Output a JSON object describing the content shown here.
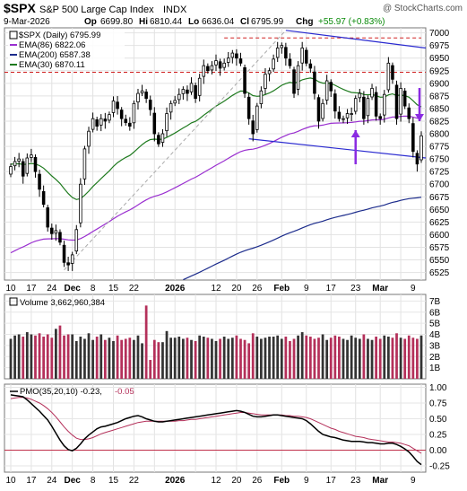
{
  "header": {
    "symbol": "$SPX",
    "name": "S&P 500 Large Cap Index",
    "exchange": "INDX",
    "watermark": "@ StockCharts.com",
    "date": "9-Mar-2026",
    "open_label": "Op",
    "open": "6699.80",
    "high_label": "Hi",
    "high": "6810.44",
    "low_label": "Lo",
    "low": "6636.04",
    "close_label": "Cl",
    "close": "6795.99",
    "change_label": "Chg",
    "change": "+55.97 (+0.83%)"
  },
  "legend": {
    "price": "$SPX (Daily) 6795.99",
    "ema86": "EMA(86) 6822.06",
    "ema200": "EMA(200) 6587.38",
    "ema30": "EMA(30) 6870.11"
  },
  "volume_legend": "Volume 3,662,960,384",
  "pmo_legend_main": "PMO(35,20,10) -0.23,",
  "pmo_legend_signal": "-0.05",
  "x_ticks": [
    "10",
    "17",
    "24",
    "Dec",
    "8",
    "15",
    "22",
    "2026",
    "12",
    "20",
    "26",
    "Feb",
    "9",
    "17",
    "23",
    "Mar",
    "9"
  ],
  "price_ticks": [
    "7000",
    "6975",
    "6950",
    "6925",
    "6900",
    "6875",
    "6850",
    "6825",
    "6800",
    "6775",
    "6750",
    "6725",
    "6700",
    "6675",
    "6650",
    "6625",
    "6600",
    "6575",
    "6550",
    "6525"
  ],
  "volume_ticks": [
    "7B",
    "6B",
    "5B",
    "4B",
    "3B",
    "2B",
    "1B"
  ],
  "pmo_ticks": [
    "1.00",
    "0.75",
    "0.50",
    "0.25",
    "0.00",
    "-0.25"
  ],
  "colors": {
    "up": "#000000",
    "down": "#000000",
    "ema86": "#9a2fd0",
    "ema200": "#1c2c8c",
    "ema30": "#1e7a1e",
    "resistance": "#d02020",
    "channel": "#2a2ad0",
    "vol_up": "#333333",
    "vol_down": "#b4305a",
    "pmo": "#000000",
    "pmo_signal": "#b4305a",
    "arrow": "#8a2be2"
  },
  "chart_data": {
    "type": "candlestick",
    "ylim": [
      6510,
      7010
    ],
    "close": [
      6735,
      6745,
      6750,
      6716,
      6752,
      6758,
      6725,
      6690,
      6660,
      6615,
      6602,
      6608,
      6585,
      6545,
      6540,
      6560,
      6610,
      6700,
      6770,
      6805,
      6830,
      6815,
      6830,
      6825,
      6838,
      6865,
      6850,
      6830,
      6822,
      6815,
      6860,
      6880,
      6885,
      6870,
      6848,
      6800,
      6780,
      6800,
      6840,
      6860,
      6866,
      6878,
      6888,
      6880,
      6900,
      6870,
      6910,
      6935,
      6925,
      6935,
      6945,
      6930,
      6940,
      6950,
      6960,
      6950,
      6940,
      6880,
      6830,
      6800,
      6855,
      6885,
      6918,
      6925,
      6948,
      6970,
      6975,
      6950,
      6935,
      6880,
      6935,
      6970,
      6940,
      6930,
      6880,
      6825,
      6860,
      6905,
      6885,
      6845,
      6830,
      6830,
      6840,
      6840,
      6870,
      6880,
      6830,
      6870,
      6890,
      6835,
      6830,
      6878,
      6940,
      6908,
      6830,
      6890,
      6855,
      6830,
      6765,
      6740,
      6795.99
    ],
    "volume_billions": [
      3.6,
      3.9,
      4.0,
      3.8,
      4.2,
      4.0,
      3.9,
      4.1,
      3.8,
      4.0,
      3.7,
      4.5,
      4.8,
      3.9,
      4.0,
      4.0,
      3.4,
      3.8,
      3.6,
      4.1,
      3.5,
      3.8,
      4.0,
      3.5,
      3.7,
      3.4,
      3.9,
      3.5,
      3.6,
      3.7,
      3.5,
      3.9,
      3.2,
      6.6,
      1.7,
      3.5,
      3.3,
      3.3,
      4.3,
      3.7,
      3.7,
      3.8,
      3.6,
      3.7,
      3.5,
      3.4,
      3.9,
      3.8,
      3.7,
      3.6,
      3.4,
      3.6,
      3.8,
      3.6,
      3.7,
      3.9,
      3.6,
      3.5,
      3.2,
      4.1,
      3.8,
      3.6,
      3.7,
      3.8,
      3.8,
      3.9,
      3.6,
      3.8,
      3.4,
      3.6,
      3.9,
      4.2,
      3.9,
      3.8,
      3.6,
      3.7,
      4.0,
      3.5,
      3.7,
      3.9,
      3.8,
      3.6,
      3.5,
      3.9,
      3.7,
      3.6,
      4.0,
      3.6,
      3.5,
      3.8,
      3.6,
      3.9,
      3.8,
      3.7,
      4.1,
      3.7,
      3.6,
      3.9,
      3.7,
      3.6,
      3.9
    ],
    "pmo": {
      "ylim": [
        -0.35,
        1.05
      ],
      "main": [
        0.88,
        0.87,
        0.86,
        0.85,
        0.8,
        0.74,
        0.68,
        0.62,
        0.55,
        0.48,
        0.38,
        0.27,
        0.16,
        0.07,
        0.01,
        -0.01,
        0.03,
        0.1,
        0.18,
        0.24,
        0.29,
        0.34,
        0.37,
        0.38,
        0.4,
        0.42,
        0.44,
        0.47,
        0.5,
        0.52,
        0.54,
        0.55,
        0.53,
        0.5,
        0.48,
        0.46,
        0.45,
        0.45,
        0.46,
        0.47,
        0.48,
        0.49,
        0.5,
        0.51,
        0.52,
        0.53,
        0.54,
        0.55,
        0.56,
        0.57,
        0.58,
        0.59,
        0.6,
        0.61,
        0.62,
        0.63,
        0.62,
        0.6,
        0.57,
        0.54,
        0.53,
        0.53,
        0.54,
        0.55,
        0.56,
        0.56,
        0.55,
        0.54,
        0.53,
        0.52,
        0.51,
        0.5,
        0.47,
        0.42,
        0.36,
        0.3,
        0.25,
        0.23,
        0.21,
        0.2,
        0.18,
        0.16,
        0.15,
        0.14,
        0.14,
        0.14,
        0.13,
        0.12,
        0.12,
        0.11,
        0.1,
        0.1,
        0.11,
        0.11,
        0.09,
        0.06,
        0.02,
        -0.03,
        -0.1,
        -0.18,
        -0.23
      ],
      "signal": [
        0.82,
        0.83,
        0.84,
        0.84,
        0.83,
        0.81,
        0.78,
        0.75,
        0.71,
        0.66,
        0.6,
        0.53,
        0.45,
        0.37,
        0.3,
        0.24,
        0.19,
        0.17,
        0.17,
        0.18,
        0.2,
        0.23,
        0.26,
        0.28,
        0.3,
        0.32,
        0.34,
        0.36,
        0.38,
        0.4,
        0.42,
        0.44,
        0.45,
        0.46,
        0.46,
        0.46,
        0.46,
        0.46,
        0.46,
        0.46,
        0.46,
        0.47,
        0.47,
        0.48,
        0.49,
        0.49,
        0.5,
        0.51,
        0.52,
        0.53,
        0.54,
        0.55,
        0.56,
        0.57,
        0.58,
        0.59,
        0.6,
        0.6,
        0.59,
        0.58,
        0.57,
        0.56,
        0.56,
        0.56,
        0.56,
        0.56,
        0.56,
        0.55,
        0.55,
        0.54,
        0.54,
        0.53,
        0.52,
        0.5,
        0.47,
        0.44,
        0.41,
        0.38,
        0.35,
        0.33,
        0.3,
        0.28,
        0.26,
        0.24,
        0.22,
        0.21,
        0.2,
        0.18,
        0.17,
        0.16,
        0.15,
        0.14,
        0.13,
        0.13,
        0.12,
        0.11,
        0.09,
        0.07,
        0.03,
        -0.01,
        -0.05
      ],
      "zero_line": 0
    }
  }
}
